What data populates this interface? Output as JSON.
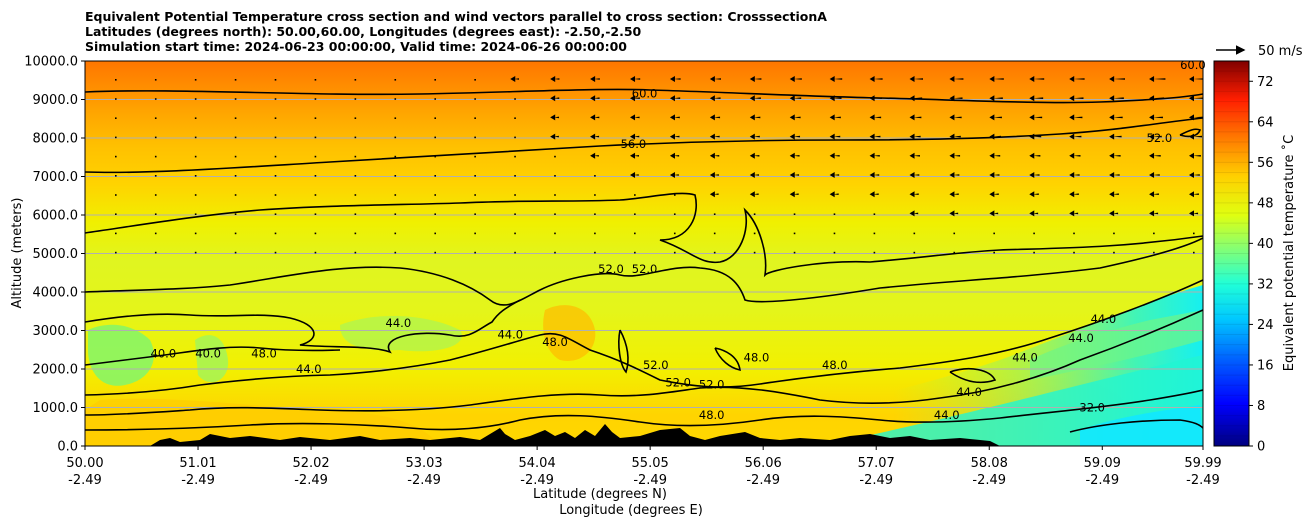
{
  "chart_data": {
    "type": "heatmap",
    "title": [
      "Equivalent Potential Temperature cross section and wind vectors parallel to cross section: CrosssectionA",
      "Latitudes (degrees north): 50.00,60.00, Longitudes (degrees east): -2.50,-2.50",
      "Simulation start time: 2024-06-23 00:00:00, Valid time: 2024-06-26 00:00:00"
    ],
    "xlabel": "Latitude (degrees N)",
    "xlabel2": "Longitude (degrees E)",
    "ylabel": "Altitude (meters)",
    "x_ticks": {
      "latitude": [
        "50.00",
        "51.01",
        "52.02",
        "53.03",
        "54.04",
        "55.05",
        "56.06",
        "57.07",
        "58.08",
        "59.09",
        "59.99"
      ],
      "longitude": [
        "-2.49",
        "-2.49",
        "-2.49",
        "-2.49",
        "-2.49",
        "-2.49",
        "-2.49",
        "-2.49",
        "-2.49",
        "-2.49",
        "-2.49"
      ],
      "values": [
        50.0,
        51.01,
        52.02,
        53.03,
        54.04,
        55.05,
        56.06,
        57.07,
        58.08,
        59.09,
        59.99
      ]
    },
    "xlim": [
      50.0,
      59.99
    ],
    "y_ticks": [
      "0.0",
      "1000.0",
      "2000.0",
      "3000.0",
      "4000.0",
      "5000.0",
      "6000.0",
      "7000.0",
      "8000.0",
      "9000.0",
      "10000.0"
    ],
    "ylim": [
      0,
      10000
    ],
    "grid": "horizontal",
    "colorbar": {
      "label": "Equivalent potential temperature $^\\circ$C",
      "label_text": "Equivalent potential temperature ˚C",
      "ticks": [
        0,
        8,
        16,
        24,
        32,
        40,
        48,
        56,
        64,
        72
      ],
      "range": [
        0,
        76
      ],
      "colormap": "jet"
    },
    "quiver_key": "50 m/s",
    "contour_labels": [
      {
        "lat": 55.0,
        "alt": 9150,
        "text": "60.0"
      },
      {
        "lat": 59.9,
        "alt": 9900,
        "text": "60.0"
      },
      {
        "lat": 54.9,
        "alt": 7850,
        "text": "56.0"
      },
      {
        "lat": 59.6,
        "alt": 8000,
        "text": "52.0"
      },
      {
        "lat": 54.7,
        "alt": 4600,
        "text": "52.0"
      },
      {
        "lat": 55.0,
        "alt": 4600,
        "text": "52.0"
      },
      {
        "lat": 55.1,
        "alt": 2100,
        "text": "52.0"
      },
      {
        "lat": 55.3,
        "alt": 1650,
        "text": "52.0"
      },
      {
        "lat": 55.6,
        "alt": 1600,
        "text": "52.0"
      },
      {
        "lat": 56.7,
        "alt": 2100,
        "text": "48.0"
      },
      {
        "lat": 56.0,
        "alt": 2300,
        "text": "48.0"
      },
      {
        "lat": 54.2,
        "alt": 2700,
        "text": "48.0"
      },
      {
        "lat": 51.6,
        "alt": 2400,
        "text": "48.0"
      },
      {
        "lat": 55.6,
        "alt": 800,
        "text": "48.0"
      },
      {
        "lat": 52.8,
        "alt": 3200,
        "text": "44.0"
      },
      {
        "lat": 53.8,
        "alt": 2900,
        "text": "44.0"
      },
      {
        "lat": 52.0,
        "alt": 2000,
        "text": "44.0"
      },
      {
        "lat": 57.9,
        "alt": 1400,
        "text": "44.0"
      },
      {
        "lat": 58.4,
        "alt": 2300,
        "text": "44.0"
      },
      {
        "lat": 58.9,
        "alt": 2800,
        "text": "44.0"
      },
      {
        "lat": 57.7,
        "alt": 800,
        "text": "44.0"
      },
      {
        "lat": 59.1,
        "alt": 3300,
        "text": "44.0"
      },
      {
        "lat": 50.7,
        "alt": 2400,
        "text": "40.0"
      },
      {
        "lat": 51.1,
        "alt": 2400,
        "text": "40.0"
      },
      {
        "lat": 59.0,
        "alt": 1000,
        "text": "32.0"
      }
    ]
  }
}
